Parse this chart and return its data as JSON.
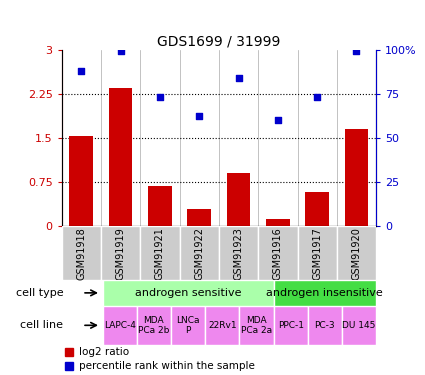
{
  "title": "GDS1699 / 31999",
  "samples": [
    "GSM91918",
    "GSM91919",
    "GSM91921",
    "GSM91922",
    "GSM91923",
    "GSM91916",
    "GSM91917",
    "GSM91920"
  ],
  "log2_ratio": [
    1.52,
    2.35,
    0.68,
    0.28,
    0.9,
    0.12,
    0.58,
    1.65
  ],
  "percentile_rank": [
    88,
    99,
    73,
    62,
    84,
    60,
    73,
    99
  ],
  "bar_color": "#cc0000",
  "dot_color": "#0000cc",
  "cell_type_groups": [
    {
      "label": "androgen sensitive",
      "start": 0,
      "end": 5,
      "color": "#aaffaa"
    },
    {
      "label": "androgen insensitive",
      "start": 5,
      "end": 8,
      "color": "#44dd44"
    }
  ],
  "cell_lines": [
    {
      "label": "LAPC-4",
      "start": 0,
      "end": 1
    },
    {
      "label": "MDA\nPCa 2b",
      "start": 1,
      "end": 2
    },
    {
      "label": "LNCa\nP",
      "start": 2,
      "end": 3
    },
    {
      "label": "22Rv1",
      "start": 3,
      "end": 4
    },
    {
      "label": "MDA\nPCa 2a",
      "start": 4,
      "end": 5
    },
    {
      "label": "PPC-1",
      "start": 5,
      "end": 6
    },
    {
      "label": "PC-3",
      "start": 6,
      "end": 7
    },
    {
      "label": "DU 145",
      "start": 7,
      "end": 8
    }
  ],
  "cell_line_color": "#ee88ee",
  "ylim_left": [
    0,
    3
  ],
  "ylim_right": [
    0,
    100
  ],
  "yticks_left": [
    0,
    0.75,
    1.5,
    2.25,
    3
  ],
  "yticks_right": [
    0,
    25,
    50,
    75,
    100
  ],
  "ytick_labels_left": [
    "0",
    "0.75",
    "1.5",
    "2.25",
    "3"
  ],
  "ytick_labels_right": [
    "0",
    "25",
    "50",
    "75",
    "100%"
  ],
  "hlines": [
    0.75,
    1.5,
    2.25
  ],
  "left_axis_color": "#cc0000",
  "right_axis_color": "#0000cc",
  "legend_log2": "log2 ratio",
  "legend_percentile": "percentile rank within the sample",
  "cell_type_label": "cell type",
  "cell_line_label": "cell line",
  "sample_box_color": "#cccccc"
}
